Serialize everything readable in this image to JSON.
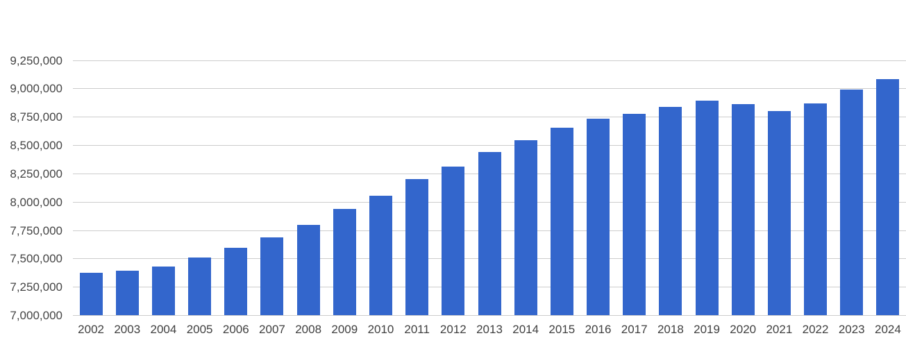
{
  "chart_data": {
    "type": "bar",
    "title": "",
    "xlabel": "",
    "ylabel": "",
    "legend": "none",
    "grid": true,
    "categories": [
      "2002",
      "2003",
      "2004",
      "2005",
      "2006",
      "2007",
      "2008",
      "2009",
      "2010",
      "2011",
      "2012",
      "2013",
      "2014",
      "2015",
      "2016",
      "2017",
      "2018",
      "2019",
      "2020",
      "2021",
      "2022",
      "2023",
      "2024"
    ],
    "values": [
      7374000,
      7393000,
      7429000,
      7512000,
      7594000,
      7688000,
      7802000,
      7941000,
      8056000,
      8201000,
      8316000,
      8439000,
      8546000,
      8658000,
      8738000,
      8776000,
      8838000,
      8893000,
      8865000,
      8806000,
      8871000,
      8993000,
      9087000
    ],
    "ylim": [
      7000000,
      9250000
    ],
    "y_tick_step": 250000,
    "y_ticks": [
      {
        "value": 7000000,
        "label": "7,000,000"
      },
      {
        "value": 7250000,
        "label": "7,250,000"
      },
      {
        "value": 7500000,
        "label": "7,500,000"
      },
      {
        "value": 7750000,
        "label": "7,750,000"
      },
      {
        "value": 8000000,
        "label": "8,000,000"
      },
      {
        "value": 8250000,
        "label": "8,250,000"
      },
      {
        "value": 8500000,
        "label": "8,500,000"
      },
      {
        "value": 8750000,
        "label": "8,750,000"
      },
      {
        "value": 9000000,
        "label": "9,000,000"
      },
      {
        "value": 9250000,
        "label": "9,250,000"
      }
    ],
    "colors": {
      "bar": "#3366cc",
      "gridline": "#cccccc",
      "axis_text": "#444444",
      "background": "#ffffff"
    }
  }
}
